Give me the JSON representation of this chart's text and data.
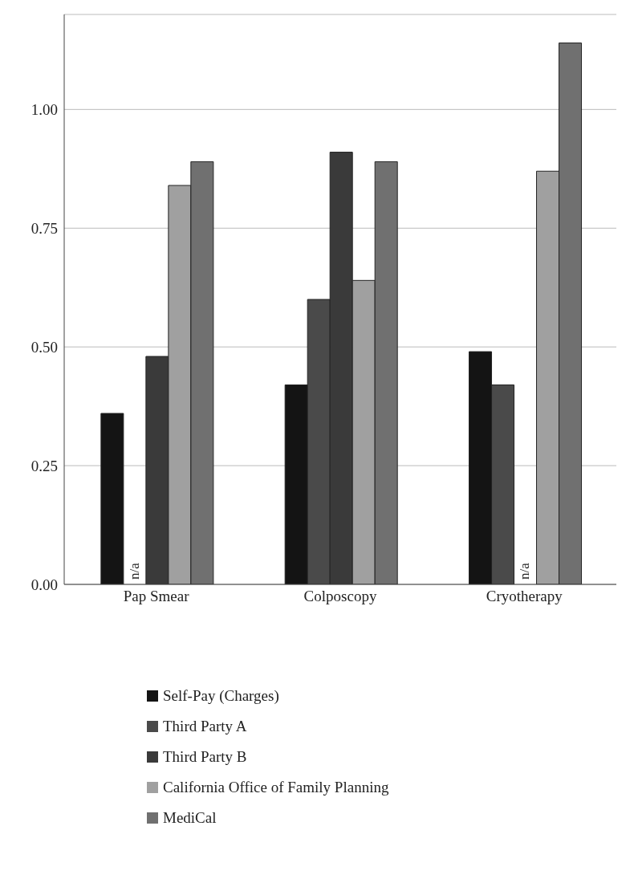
{
  "chart_data": {
    "type": "bar",
    "categories": [
      "Pap Smear",
      "Colposcopy",
      "Cryotherapy"
    ],
    "series": [
      {
        "name": "Self-Pay (Charges)",
        "color": "#141414",
        "values": [
          0.36,
          0.42,
          0.49
        ]
      },
      {
        "name": "Third Party A",
        "color": "#4a4a4a",
        "values": [
          null,
          0.6,
          0.42
        ]
      },
      {
        "name": "Third Party B",
        "color": "#3a3a3a",
        "values": [
          0.48,
          0.91,
          null
        ]
      },
      {
        "name": "California Office of Family Planning",
        "color": "#a0a0a0",
        "values": [
          0.84,
          0.64,
          0.87
        ]
      },
      {
        "name": "MediCal",
        "color": "#707070",
        "values": [
          0.89,
          0.89,
          1.14
        ]
      }
    ],
    "ylim": [
      0,
      1.2
    ],
    "yticks": [
      {
        "value": 0,
        "label": "0.00"
      },
      {
        "value": 0.25,
        "label": "0.25"
      },
      {
        "value": 0.5,
        "label": "0.50"
      },
      {
        "value": 0.75,
        "label": "0.75"
      },
      {
        "value": 1,
        "label": "1.00"
      }
    ],
    "grid": "y",
    "legend": "bottom",
    "annotations": [
      "n/a",
      "n/a"
    ]
  }
}
